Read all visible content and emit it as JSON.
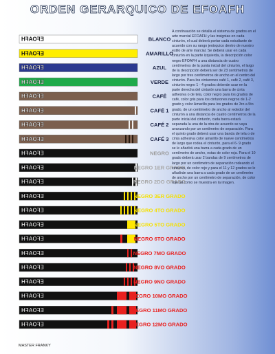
{
  "header": {
    "title": "ORDEN GERARQUICO DE EFOAFH"
  },
  "belt_text": "EFOAFH",
  "belts": [
    {
      "label": "BLANCO",
      "belt_color": "#ffffff",
      "label_color": "#1a2244"
    },
    {
      "label": "AMARILLO",
      "belt_color": "#ffee00",
      "label_color": "#1a2244"
    },
    {
      "label": "AZUL",
      "belt_color": "#2b3990",
      "label_color": "#1a2244"
    },
    {
      "label": "VERDE",
      "belt_color": "#1faa4a",
      "label_color": "#1a2244"
    },
    {
      "label": "CAFÉ",
      "belt_color": "#7b5f4e",
      "label_color": "#1a2244"
    },
    {
      "label": "CAFÉ 1",
      "belt_color": "#7b5f4e",
      "label_color": "#1a2244"
    },
    {
      "label": "CAFÉ 2",
      "belt_color": "#7b5f4e",
      "label_color": "#1a2244"
    },
    {
      "label": "CAFÉ 3",
      "belt_color": "#7b5f4e",
      "label_color": "#1a2244"
    },
    {
      "label": "NEGRO",
      "belt_color": "#111111",
      "label_color": "#9a9a9a"
    },
    {
      "label": "NEGRO 1ER GRADO",
      "belt_color": "#111111",
      "label_color": "#a8a8a8"
    },
    {
      "label": "NEGRO 2DO GRADO",
      "belt_color": "#111111",
      "label_color": "#a8a8a8"
    },
    {
      "label": "NEGRO 3ER GRADO",
      "belt_color": "#111111",
      "label_color": "#f5e000"
    },
    {
      "label": "NEGRO 4TO GRADO",
      "belt_color": "#111111",
      "label_color": "#f5e000"
    },
    {
      "label": "NEGRO 5TO GRADO",
      "belt_color": "#111111",
      "label_color": "#f5e000"
    },
    {
      "label": "NEGRO 6TO GRADO",
      "belt_color": "#111111",
      "label_color": "#e8211f"
    },
    {
      "label": "NEGRO 7MO GRADO",
      "belt_color": "#111111",
      "label_color": "#e8211f"
    },
    {
      "label": "NEGRO 8VO GRADO",
      "belt_color": "#111111",
      "label_color": "#e8211f"
    },
    {
      "label": "NEGRO 9NO GRADO",
      "belt_color": "#111111",
      "label_color": "#e8211f"
    },
    {
      "label": "NEGRO 10MO GRADO",
      "belt_color": "#111111",
      "label_color": "#e8211f"
    },
    {
      "label": "NEGRO 11MO GRADO",
      "belt_color": "#111111",
      "label_color": "#e8211f"
    },
    {
      "label": "NEGRO 12MO GRADO",
      "belt_color": "#111111",
      "label_color": "#e8211f"
    }
  ],
  "description": "A continuación se detalla el sistema de grados en el arte marcial EFOAFH y las insignias en cada cinturón, el cual deberá portar cada estudiante de acuerdo con su rango jerárquico dentro de nuestro estilo de arte marcial. Se deberá usar en cada cinturón en la parte izquierda, la descripción color negro EFOAFH a una distancia de cuatro centímetros de la punta inicial del cinturón, el largo de la descripción deberá ser de 23 centímetros de largo por tres centímetros de ancho en el centro del cinturón. Para los cinturones café 1, café 2, café 3, cinturón negro 1 - 4 grados deberán usar en la parte derecha del cinturón una barra de cinta adhesiva o de tela, color negro para los grados de café, color gris para los cinturones negros de 1-2 grado y color Amarillo para los grados de 3ro a 5to grado, de un centímetro de ancho al rededor del cinturón a una distancia de cuatro centímetros de la parte inicial del cinturón, cada barra estará separada la una de la otra de acuerdo se vaya avanzando por un centímetro de separación. Para el quinto grado deberá usar una banda de tela o de cinta adhesiva color amarillo de nueve centímetros de largo que rodea el cinturón, para el 6- 9 grado se le añadirá una barra a cada grado de un centímetro de ancho, estas de color roja. Para el 10 grado deberá usar 2 bandas de 9 centímetros de largo por un centímetro de separación rodeando el cinturón, de color rojo y para el 11 y 12 grados se le añadirán una barra a cada grado de un centímetro de ancho por un centímetro de separación, de color rojo tal como se muestra en la imagen.",
  "footer": "MASTER FRANKY"
}
